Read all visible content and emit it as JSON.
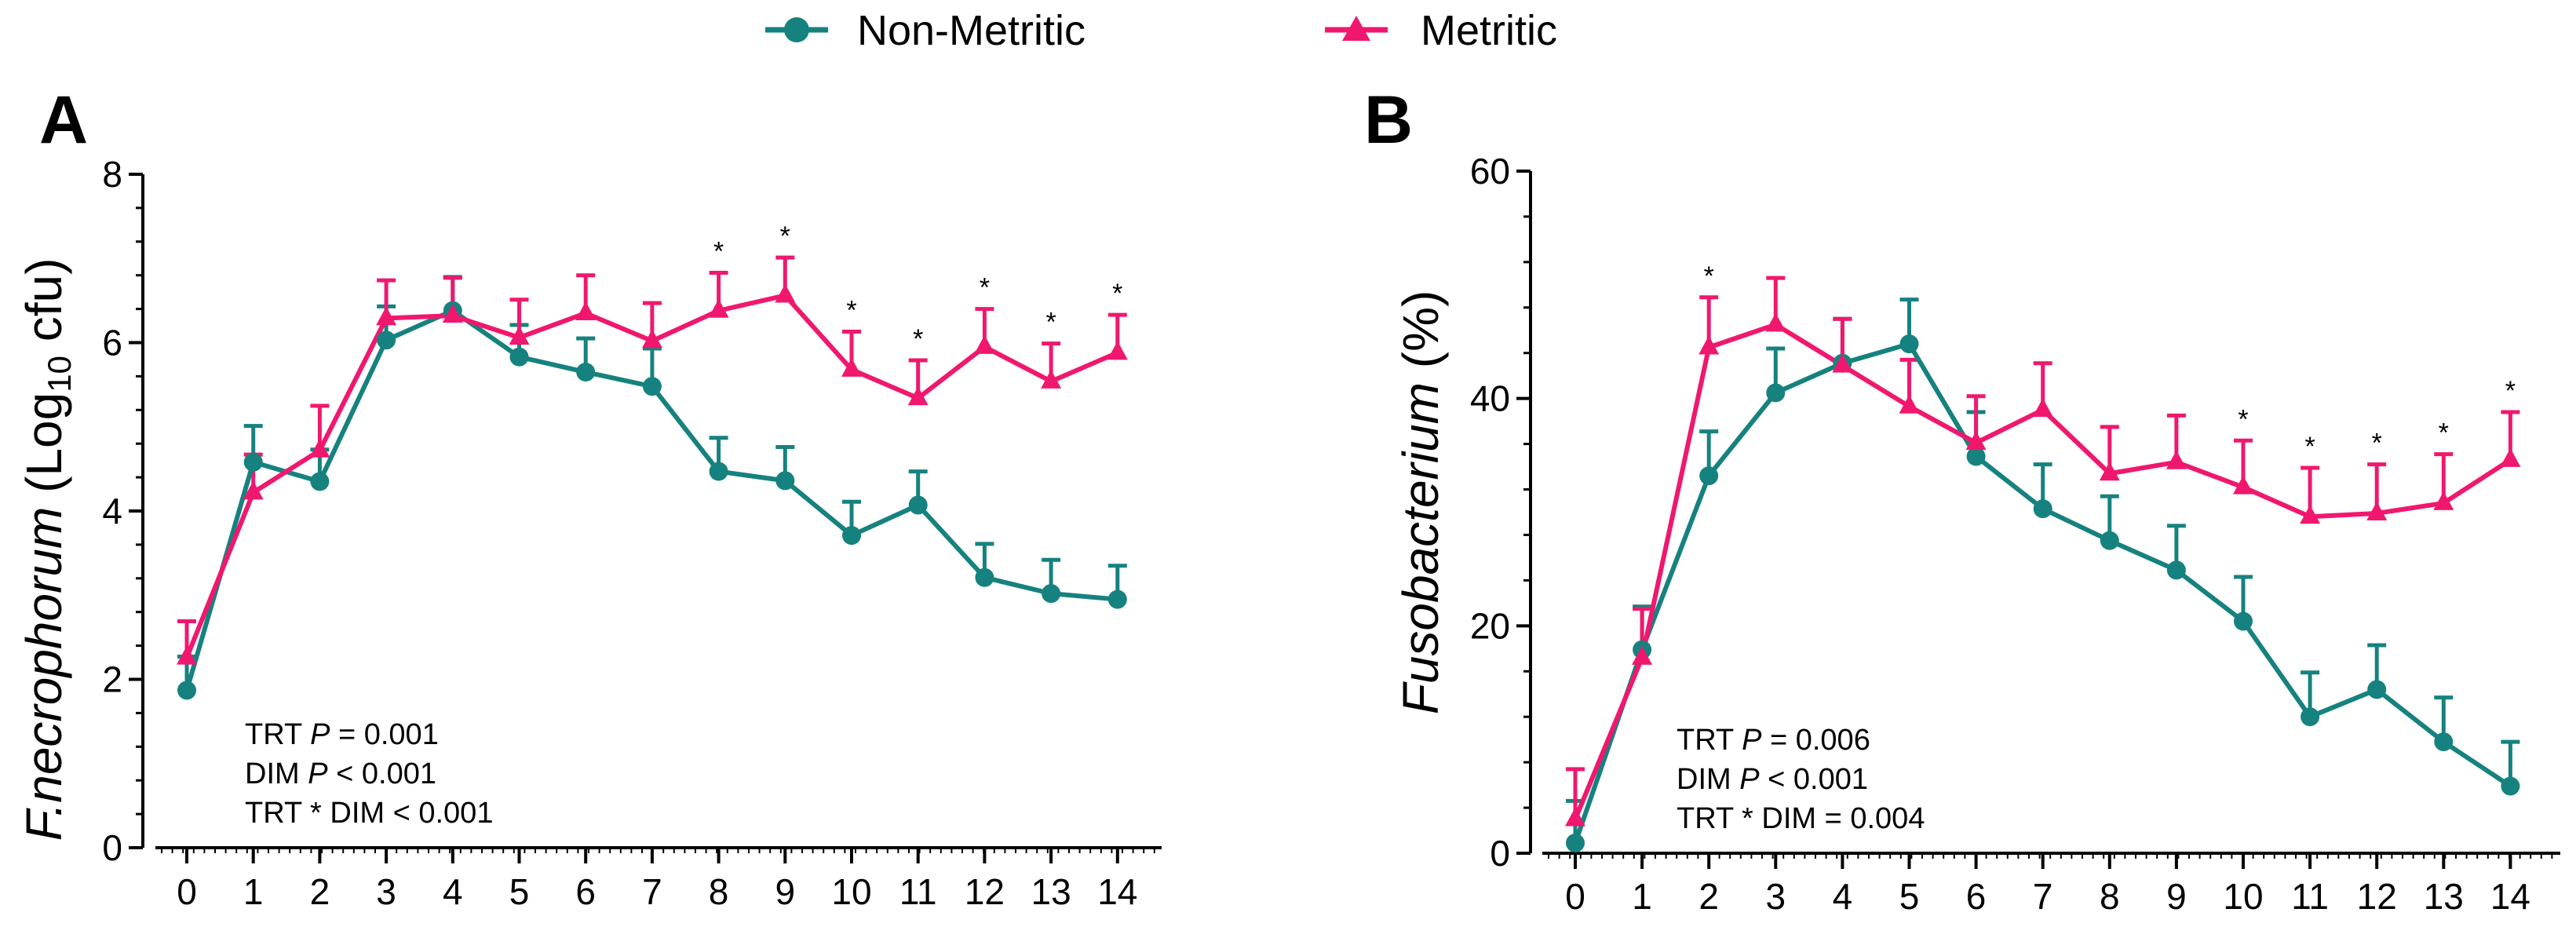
{
  "legend": {
    "non_metritic": "Non-Metritic",
    "metritic": "Metritic"
  },
  "colors": {
    "non_metritic": "#16827F",
    "metritic": "#F0186E",
    "axis": "#000000"
  },
  "chart_data": [
    {
      "type": "line",
      "panel": "A",
      "title": "",
      "xlabel": "",
      "ylabel_parts": [
        "F.necrophorum",
        " (Log",
        "10",
        " cfu)"
      ],
      "ylim": [
        0,
        8
      ],
      "yticks": [
        0,
        2,
        4,
        6,
        8
      ],
      "categories": [
        "0",
        "1",
        "2",
        "3",
        "4",
        "5",
        "6",
        "7",
        "8",
        "9",
        "10",
        "11",
        "12",
        "13",
        "14"
      ],
      "series": [
        {
          "name": "Non-Metritic",
          "values": [
            1.87,
            4.58,
            4.35,
            6.03,
            6.38,
            5.83,
            5.65,
            5.48,
            4.47,
            4.36,
            3.71,
            4.07,
            3.21,
            3.02,
            2.95
          ],
          "errors": [
            0.4,
            0.43,
            0.38,
            0.4,
            0.4,
            0.38,
            0.4,
            0.45,
            0.4,
            0.4,
            0.4,
            0.4,
            0.4,
            0.4,
            0.4
          ]
        },
        {
          "name": "Metritic",
          "values": [
            2.26,
            4.22,
            4.72,
            6.29,
            6.32,
            6.06,
            6.35,
            6.02,
            6.38,
            6.56,
            5.68,
            5.34,
            5.95,
            5.54,
            5.88
          ],
          "errors": [
            0.43,
            0.45,
            0.53,
            0.45,
            0.45,
            0.45,
            0.45,
            0.45,
            0.45,
            0.45,
            0.45,
            0.45,
            0.45,
            0.45,
            0.45
          ]
        }
      ],
      "significant": [
        "8",
        "9",
        "10",
        "11",
        "12",
        "13",
        "14"
      ],
      "significance_mark": "*",
      "stats": [
        {
          "pre": "TRT ",
          "p": "P",
          "post": " = 0.001"
        },
        {
          "pre": "DIM ",
          "p": "P",
          "post": " < 0.001"
        },
        {
          "pre": "TRT * DIM < 0.001",
          "p": "",
          "post": ""
        }
      ]
    },
    {
      "type": "line",
      "panel": "B",
      "title": "",
      "xlabel": "",
      "ylabel_parts": [
        "Fusobacterium",
        " (%)"
      ],
      "ylim": [
        0,
        60
      ],
      "yticks": [
        0,
        20,
        40,
        60
      ],
      "categories": [
        "0",
        "1",
        "2",
        "3",
        "4",
        "5",
        "6",
        "7",
        "8",
        "9",
        "10",
        "11",
        "12",
        "13",
        "14"
      ],
      "series": [
        {
          "name": "Non-Metritic",
          "values": [
            0.9,
            17.9,
            33.2,
            40.5,
            43.1,
            44.8,
            34.9,
            30.3,
            27.5,
            24.9,
            20.4,
            12.0,
            14.4,
            9.8,
            5.9
          ],
          "errors": [
            3.7,
            3.8,
            3.9,
            3.9,
            3.9,
            3.9,
            3.9,
            3.9,
            3.9,
            3.9,
            3.9,
            3.9,
            3.9,
            3.9,
            3.9
          ]
        },
        {
          "name": "Metritic",
          "values": [
            3.0,
            17.2,
            44.5,
            46.5,
            42.9,
            39.3,
            36.1,
            39.0,
            33.4,
            34.4,
            32.2,
            29.6,
            29.9,
            30.8,
            34.6
          ],
          "errors": [
            4.4,
            4.3,
            4.4,
            4.1,
            4.1,
            4.1,
            4.1,
            4.1,
            4.1,
            4.1,
            4.1,
            4.3,
            4.3,
            4.3,
            4.2
          ]
        }
      ],
      "significant": [
        "2",
        "10",
        "11",
        "12",
        "13",
        "14"
      ],
      "significance_mark": "*",
      "stats": [
        {
          "pre": "TRT ",
          "p": "P",
          "post": " = 0.006"
        },
        {
          "pre": "DIM ",
          "p": "P",
          "post": " < 0.001"
        },
        {
          "pre": "TRT * DIM = 0.004",
          "p": "",
          "post": ""
        }
      ]
    }
  ]
}
